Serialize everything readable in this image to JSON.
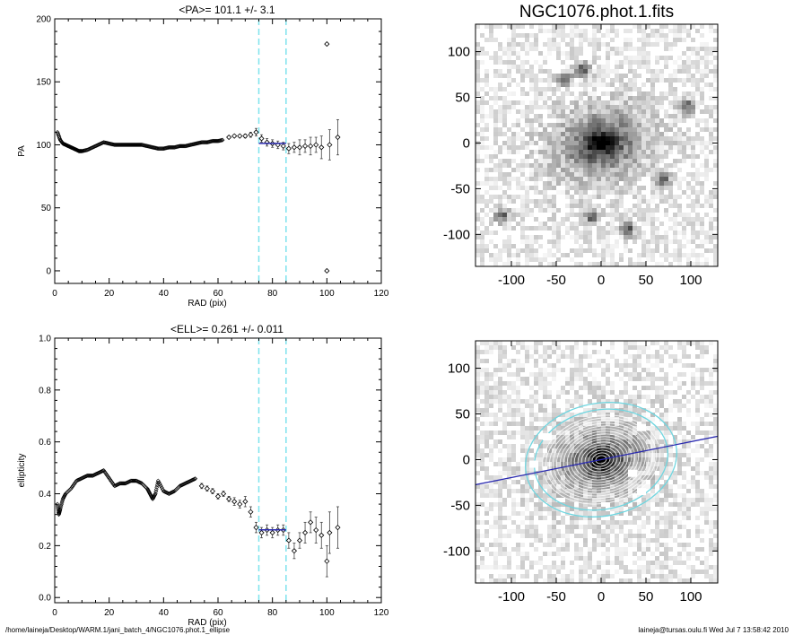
{
  "footer": {
    "path": "/home/laineja/Desktop/WARM.1/jani_batch_4/NGC1076.phot.1_ellipse",
    "stamp": "laineja@tursas.oulu.fi  Wed Jul  7 13:58:42 2010"
  },
  "colors": {
    "points": "#000000",
    "fit_line": "#2b2bb0",
    "fit_range": "#7fe3ee",
    "contours": "#ffffff",
    "fit_ellipse": "#6fd6e0"
  },
  "chart_data": [
    {
      "id": "pa",
      "type": "scatter",
      "title": "<PA>= 101.1 +/-   3.1",
      "xlabel": "RAD (pix)",
      "ylabel": "PA",
      "xlim": [
        0,
        120
      ],
      "ylim": [
        -10,
        200
      ],
      "xticks": [
        "0",
        "20",
        "40",
        "60",
        "80",
        "100",
        "120"
      ],
      "yticks": [
        "0",
        "50",
        "100",
        "150",
        "200"
      ],
      "fit_range": [
        75,
        85
      ],
      "fit_value": 101.1,
      "curve": {
        "x": [
          1,
          2,
          3,
          4,
          5,
          6,
          7,
          8,
          9,
          10,
          12,
          14,
          16,
          18,
          20,
          22,
          24,
          26,
          28,
          30,
          32,
          34,
          36,
          38,
          40,
          42,
          44,
          46,
          48,
          50,
          52,
          54,
          56,
          58,
          60,
          62
        ],
        "y": [
          110,
          104,
          101,
          100,
          99,
          98,
          97,
          96,
          95,
          95,
          96,
          98,
          100,
          102,
          101,
          100,
          100,
          100,
          100,
          100,
          100,
          99,
          98,
          97,
          97,
          98,
          98,
          99,
          99,
          100,
          101,
          102,
          102,
          103,
          103,
          104
        ]
      },
      "points": [
        {
          "x": 64,
          "y": 106,
          "err": 1
        },
        {
          "x": 66,
          "y": 107,
          "err": 1
        },
        {
          "x": 68,
          "y": 107,
          "err": 1
        },
        {
          "x": 70,
          "y": 107,
          "err": 1.5
        },
        {
          "x": 72,
          "y": 108,
          "err": 2
        },
        {
          "x": 74,
          "y": 110,
          "err": 3
        },
        {
          "x": 76,
          "y": 105,
          "err": 3
        },
        {
          "x": 78,
          "y": 102,
          "err": 3
        },
        {
          "x": 80,
          "y": 101,
          "err": 3
        },
        {
          "x": 82,
          "y": 100,
          "err": 3
        },
        {
          "x": 84,
          "y": 99,
          "err": 3
        },
        {
          "x": 86,
          "y": 97,
          "err": 4
        },
        {
          "x": 88,
          "y": 98,
          "err": 4
        },
        {
          "x": 90,
          "y": 98,
          "err": 6
        },
        {
          "x": 92,
          "y": 99,
          "err": 5
        },
        {
          "x": 94,
          "y": 99,
          "err": 7
        },
        {
          "x": 96,
          "y": 100,
          "err": 6
        },
        {
          "x": 98,
          "y": 98,
          "err": 9
        },
        {
          "x": 100,
          "y": 180,
          "err": 0
        },
        {
          "x": 100,
          "y": 0,
          "err": 0
        },
        {
          "x": 101,
          "y": 100,
          "err": 12
        },
        {
          "x": 104,
          "y": 106,
          "err": 14
        }
      ]
    },
    {
      "id": "ell",
      "type": "scatter",
      "title": "<ELL>= 0.261 +/-  0.011",
      "xlabel": "RAD (pix)",
      "ylabel": "ellipticity",
      "xlim": [
        0,
        120
      ],
      "ylim": [
        -0.02,
        1.0
      ],
      "xticks": [
        "0",
        "20",
        "40",
        "60",
        "80",
        "100",
        "120"
      ],
      "yticks": [
        "0.0",
        "0.2",
        "0.4",
        "0.6",
        "0.8",
        "1.0"
      ],
      "fit_range": [
        75,
        85
      ],
      "fit_value": 0.261,
      "curve": {
        "x": [
          1,
          1.5,
          2,
          3,
          4,
          6,
          8,
          10,
          12,
          14,
          16,
          18,
          20,
          22,
          24,
          26,
          28,
          30,
          32,
          34,
          35,
          36,
          37,
          38,
          40,
          42,
          44,
          46,
          48,
          50,
          52
        ],
        "y": [
          0.36,
          0.32,
          0.34,
          0.38,
          0.4,
          0.42,
          0.45,
          0.46,
          0.47,
          0.47,
          0.48,
          0.49,
          0.46,
          0.43,
          0.44,
          0.44,
          0.45,
          0.45,
          0.44,
          0.42,
          0.4,
          0.38,
          0.4,
          0.45,
          0.41,
          0.4,
          0.41,
          0.43,
          0.44,
          0.45,
          0.46
        ]
      },
      "points": [
        {
          "x": 54,
          "y": 0.43,
          "err": 0.01
        },
        {
          "x": 56,
          "y": 0.42,
          "err": 0.01
        },
        {
          "x": 58,
          "y": 0.41,
          "err": 0.01
        },
        {
          "x": 60,
          "y": 0.39,
          "err": 0.01
        },
        {
          "x": 62,
          "y": 0.4,
          "err": 0.01
        },
        {
          "x": 64,
          "y": 0.38,
          "err": 0.01
        },
        {
          "x": 66,
          "y": 0.37,
          "err": 0.015
        },
        {
          "x": 68,
          "y": 0.36,
          "err": 0.015
        },
        {
          "x": 70,
          "y": 0.37,
          "err": 0.02
        },
        {
          "x": 72,
          "y": 0.33,
          "err": 0.02
        },
        {
          "x": 74,
          "y": 0.27,
          "err": 0.02
        },
        {
          "x": 76,
          "y": 0.25,
          "err": 0.02
        },
        {
          "x": 78,
          "y": 0.26,
          "err": 0.02
        },
        {
          "x": 80,
          "y": 0.25,
          "err": 0.02
        },
        {
          "x": 82,
          "y": 0.26,
          "err": 0.02
        },
        {
          "x": 84,
          "y": 0.26,
          "err": 0.02
        },
        {
          "x": 86,
          "y": 0.22,
          "err": 0.03
        },
        {
          "x": 88,
          "y": 0.18,
          "err": 0.03
        },
        {
          "x": 90,
          "y": 0.22,
          "err": 0.03
        },
        {
          "x": 92,
          "y": 0.25,
          "err": 0.04
        },
        {
          "x": 94,
          "y": 0.29,
          "err": 0.04
        },
        {
          "x": 96,
          "y": 0.26,
          "err": 0.05
        },
        {
          "x": 98,
          "y": 0.24,
          "err": 0.05
        },
        {
          "x": 100,
          "y": 0.14,
          "err": 0.06
        },
        {
          "x": 101,
          "y": 0.25,
          "err": 0.08
        },
        {
          "x": 104,
          "y": 0.27,
          "err": 0.08
        }
      ]
    },
    {
      "id": "img1",
      "type": "heatmap",
      "title": "NGC1076.phot.1.fits",
      "xlim": [
        -140,
        130
      ],
      "ylim": [
        -135,
        130
      ],
      "xticks": [
        "-100",
        "-50",
        "0",
        "50",
        "100"
      ],
      "yticks": [
        "-100",
        "-50",
        "0",
        "50",
        "100"
      ],
      "galaxy": {
        "center": [
          0,
          0
        ],
        "semi_major": 75,
        "ellipticity": 0.26,
        "pa_deg": 101.1
      },
      "stars": [
        [
          -110,
          -80
        ],
        [
          -40,
          70
        ],
        [
          -20,
          80
        ],
        [
          95,
          40
        ],
        [
          70,
          -40
        ],
        [
          30,
          -95
        ],
        [
          -10,
          -80
        ]
      ]
    },
    {
      "id": "img2",
      "type": "heatmap",
      "title": "",
      "xlim": [
        -140,
        130
      ],
      "ylim": [
        -135,
        130
      ],
      "xticks": [
        "-100",
        "-50",
        "0",
        "50",
        "100"
      ],
      "yticks": [
        "-100",
        "-50",
        "0",
        "50",
        "100"
      ],
      "galaxy": {
        "center": [
          0,
          0
        ],
        "semi_major": 75,
        "ellipticity": 0.26,
        "pa_deg": 101.1
      },
      "contour_sma": [
        6,
        10,
        14,
        18,
        22,
        26,
        30,
        34,
        38,
        42,
        46,
        50,
        54,
        58,
        62,
        66
      ],
      "fit_ellipse_sma": [
        75,
        85
      ],
      "mask_boxes": [
        [
          -60,
          25
        ],
        [
          45,
          35
        ],
        [
          35,
          -15
        ],
        [
          45,
          -35
        ],
        [
          -75,
          -5
        ]
      ]
    }
  ]
}
